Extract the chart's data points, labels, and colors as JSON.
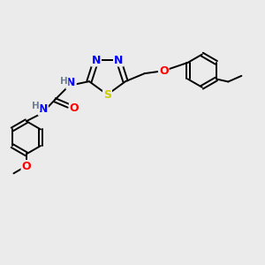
{
  "background_color": "#ebebeb",
  "atom_colors": {
    "N": "#0000ff",
    "O": "#ff0000",
    "S": "#cccc00",
    "C": "#000000",
    "H": "#708090"
  },
  "bond_color": "#000000",
  "figsize": [
    3.0,
    3.0
  ],
  "dpi": 100,
  "lw": 1.4,
  "fs": 9.0,
  "fs_small": 7.5
}
